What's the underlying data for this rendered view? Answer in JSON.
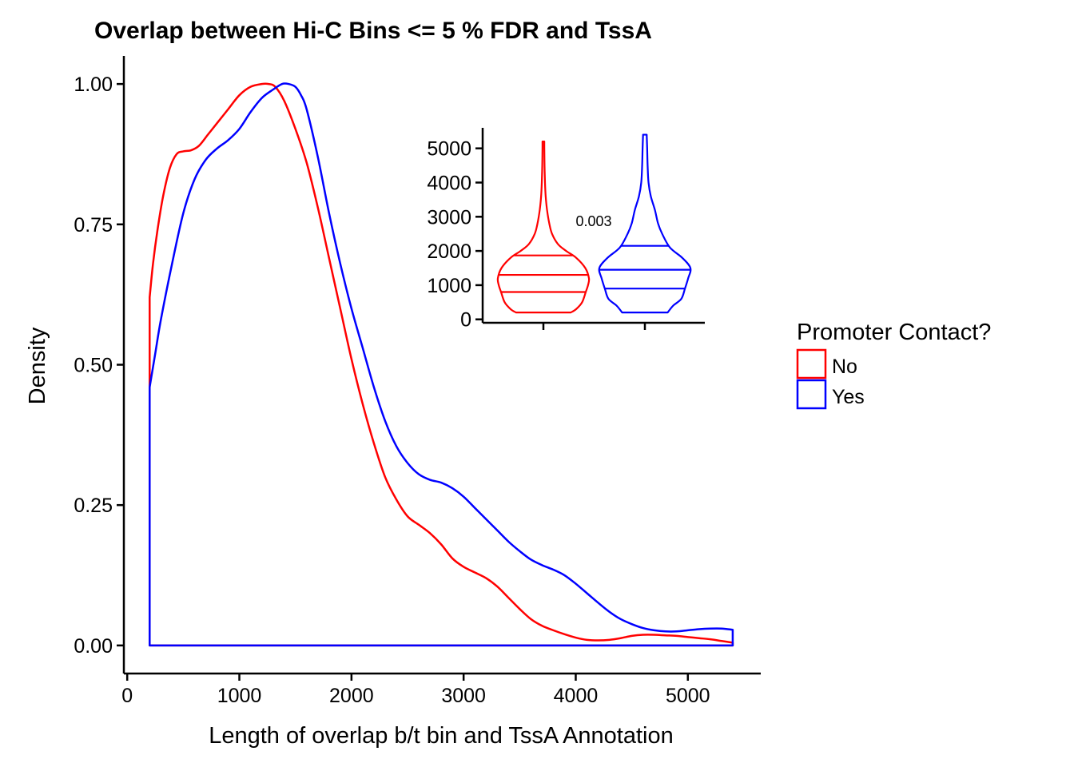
{
  "chart_data": [
    {
      "type": "area",
      "title": "Overlap between Hi-C Bins <= 5 % FDR and TssA",
      "xlabel": "Length of overlap b/t bin and TssA Annotation",
      "ylabel": "Density",
      "xlim": [
        -30,
        5650
      ],
      "ylim": [
        -0.05,
        1.05
      ],
      "x_ticks": [
        "0",
        "1000",
        "2000",
        "3000",
        "4000",
        "5000"
      ],
      "y_ticks": [
        "0.00",
        "0.25",
        "0.50",
        "0.75",
        "1.00"
      ],
      "grid": false,
      "legend": {
        "title": "Promoter Contact?",
        "position": "right",
        "items": [
          {
            "label": "No",
            "color": "#ff0000"
          },
          {
            "label": "Yes",
            "color": "#0000ff"
          }
        ]
      },
      "series": [
        {
          "name": "No",
          "color": "#ff0000",
          "x": [
            200,
            230,
            270,
            320,
            380,
            440,
            500,
            570,
            640,
            720,
            800,
            900,
            1000,
            1100,
            1200,
            1260,
            1320,
            1400,
            1500,
            1600,
            1700,
            1800,
            1900,
            2000,
            2100,
            2200,
            2300,
            2400,
            2500,
            2600,
            2700,
            2800,
            2900,
            3000,
            3100,
            3200,
            3300,
            3400,
            3500,
            3600,
            3700,
            3800,
            3900,
            4000,
            4100,
            4200,
            4300,
            4400,
            4500,
            4600,
            4700,
            4800,
            4900,
            5000,
            5100,
            5200,
            5300,
            5400
          ],
          "y": [
            0.62,
            0.68,
            0.74,
            0.8,
            0.85,
            0.875,
            0.88,
            0.882,
            0.89,
            0.91,
            0.93,
            0.955,
            0.98,
            0.995,
            1.0,
            1.0,
            0.995,
            0.97,
            0.92,
            0.86,
            0.78,
            0.69,
            0.6,
            0.51,
            0.43,
            0.36,
            0.3,
            0.26,
            0.23,
            0.215,
            0.2,
            0.18,
            0.155,
            0.14,
            0.13,
            0.12,
            0.105,
            0.085,
            0.065,
            0.047,
            0.035,
            0.027,
            0.02,
            0.014,
            0.01,
            0.009,
            0.01,
            0.013,
            0.017,
            0.019,
            0.019,
            0.018,
            0.017,
            0.015,
            0.013,
            0.011,
            0.008,
            0.005
          ]
        },
        {
          "name": "Yes",
          "color": "#0000ff",
          "x": [
            200,
            250,
            300,
            400,
            500,
            600,
            700,
            800,
            900,
            1000,
            1100,
            1200,
            1300,
            1380,
            1440,
            1500,
            1550,
            1600,
            1700,
            1800,
            1900,
            2000,
            2100,
            2200,
            2300,
            2400,
            2500,
            2600,
            2700,
            2800,
            2900,
            3000,
            3100,
            3200,
            3300,
            3400,
            3500,
            3600,
            3700,
            3800,
            3900,
            4000,
            4100,
            4200,
            4300,
            4400,
            4500,
            4600,
            4700,
            4800,
            4900,
            5000,
            5100,
            5200,
            5300,
            5400
          ],
          "y": [
            0.46,
            0.52,
            0.58,
            0.68,
            0.77,
            0.83,
            0.865,
            0.885,
            0.9,
            0.92,
            0.95,
            0.975,
            0.99,
            1.0,
            1.0,
            0.995,
            0.98,
            0.955,
            0.87,
            0.77,
            0.68,
            0.6,
            0.53,
            0.46,
            0.4,
            0.355,
            0.325,
            0.305,
            0.295,
            0.29,
            0.28,
            0.265,
            0.245,
            0.225,
            0.205,
            0.185,
            0.168,
            0.153,
            0.143,
            0.135,
            0.125,
            0.11,
            0.093,
            0.076,
            0.06,
            0.047,
            0.038,
            0.031,
            0.027,
            0.025,
            0.025,
            0.027,
            0.029,
            0.03,
            0.03,
            0.028
          ]
        }
      ]
    },
    {
      "type": "violin",
      "ylim": [
        -100,
        5600
      ],
      "y_ticks": [
        "0",
        "1000",
        "2000",
        "3000",
        "4000",
        "5000"
      ],
      "annotation": "0.003",
      "groups": [
        {
          "name": "No",
          "color": "#ff0000",
          "min": 200,
          "max": 5200,
          "quantiles": [
            800,
            1300,
            1870
          ],
          "profile": [
            [
              200,
              0.6
            ],
            [
              300,
              0.72
            ],
            [
              500,
              0.85
            ],
            [
              800,
              0.93
            ],
            [
              1000,
              0.98
            ],
            [
              1200,
              1.0
            ],
            [
              1500,
              0.92
            ],
            [
              1800,
              0.72
            ],
            [
              2000,
              0.5
            ],
            [
              2200,
              0.32
            ],
            [
              2500,
              0.19
            ],
            [
              2800,
              0.13
            ],
            [
              3200,
              0.08
            ],
            [
              3600,
              0.05
            ],
            [
              4000,
              0.035
            ],
            [
              4500,
              0.025
            ],
            [
              5000,
              0.02
            ],
            [
              5200,
              0.02
            ]
          ]
        },
        {
          "name": "Yes",
          "color": "#0000ff",
          "min": 200,
          "max": 5400,
          "quantiles": [
            900,
            1450,
            2150
          ],
          "profile": [
            [
              200,
              0.5
            ],
            [
              400,
              0.62
            ],
            [
              600,
              0.8
            ],
            [
              900,
              0.88
            ],
            [
              1200,
              0.95
            ],
            [
              1500,
              1.0
            ],
            [
              1800,
              0.82
            ],
            [
              2100,
              0.55
            ],
            [
              2500,
              0.38
            ],
            [
              2800,
              0.29
            ],
            [
              3200,
              0.22
            ],
            [
              3600,
              0.13
            ],
            [
              4000,
              0.08
            ],
            [
              4500,
              0.06
            ],
            [
              5000,
              0.05
            ],
            [
              5400,
              0.04
            ]
          ]
        }
      ]
    }
  ]
}
